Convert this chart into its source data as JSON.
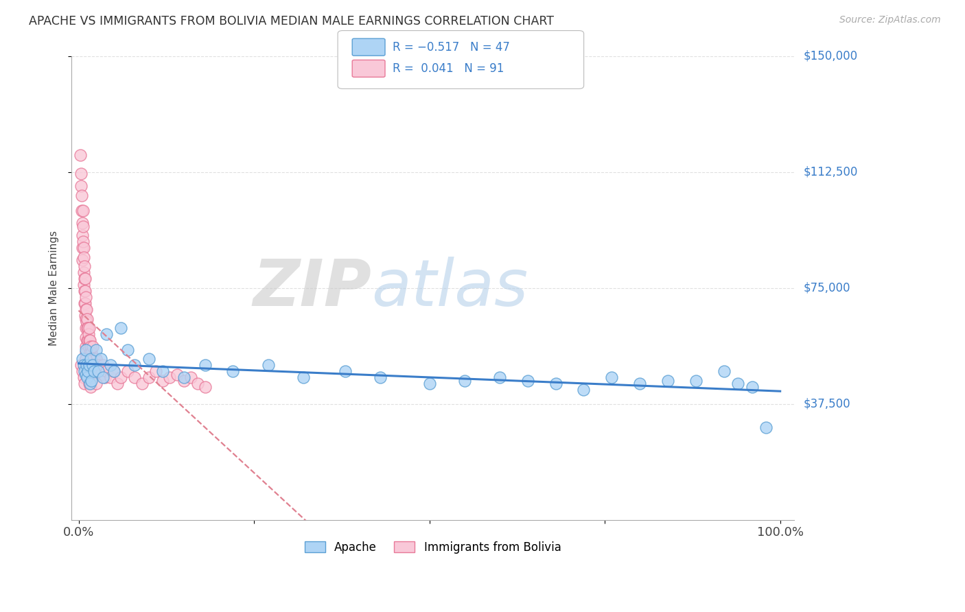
{
  "title": "APACHE VS IMMIGRANTS FROM BOLIVIA MEDIAN MALE EARNINGS CORRELATION CHART",
  "source": "Source: ZipAtlas.com",
  "ylabel": "Median Male Earnings",
  "xlim": [
    -0.01,
    1.02
  ],
  "ylim": [
    0,
    150000
  ],
  "xticks": [
    0.0,
    0.25,
    0.5,
    0.75,
    1.0
  ],
  "xticklabels": [
    "0.0%",
    "",
    "",
    "",
    "100.0%"
  ],
  "ytick_labels": [
    "$37,500",
    "$75,000",
    "$112,500",
    "$150,000"
  ],
  "ytick_values": [
    37500,
    75000,
    112500,
    150000
  ],
  "background_color": "#ffffff",
  "series1_color": "#7ab8e8",
  "series1_fill": "#aed4f5",
  "series1_edge": "#5a9fd4",
  "series2_color": "#f4a0b8",
  "series2_fill": "#f9c8d8",
  "series2_edge": "#e87898",
  "trendline1_color": "#3a7dc9",
  "trendline2_color": "#e08090",
  "grid_color": "#e0e0e0",
  "apache_x": [
    0.005,
    0.007,
    0.008,
    0.01,
    0.01,
    0.011,
    0.012,
    0.013,
    0.015,
    0.016,
    0.017,
    0.018,
    0.02,
    0.022,
    0.025,
    0.028,
    0.032,
    0.035,
    0.04,
    0.045,
    0.05,
    0.06,
    0.07,
    0.08,
    0.1,
    0.12,
    0.15,
    0.18,
    0.22,
    0.27,
    0.32,
    0.38,
    0.43,
    0.5,
    0.55,
    0.6,
    0.64,
    0.68,
    0.72,
    0.76,
    0.8,
    0.84,
    0.88,
    0.92,
    0.94,
    0.96,
    0.98
  ],
  "apache_y": [
    52000,
    50000,
    48000,
    47000,
    55000,
    50000,
    46000,
    48000,
    50000,
    44000,
    52000,
    45000,
    50000,
    48000,
    55000,
    48000,
    52000,
    46000,
    60000,
    50000,
    48000,
    62000,
    55000,
    50000,
    52000,
    48000,
    46000,
    50000,
    48000,
    50000,
    46000,
    48000,
    46000,
    44000,
    45000,
    46000,
    45000,
    44000,
    42000,
    46000,
    44000,
    45000,
    45000,
    48000,
    44000,
    43000,
    30000
  ],
  "bolivia_x": [
    0.002,
    0.003,
    0.003,
    0.004,
    0.004,
    0.005,
    0.005,
    0.005,
    0.005,
    0.006,
    0.006,
    0.006,
    0.007,
    0.007,
    0.007,
    0.007,
    0.008,
    0.008,
    0.008,
    0.008,
    0.009,
    0.009,
    0.009,
    0.009,
    0.01,
    0.01,
    0.01,
    0.01,
    0.01,
    0.01,
    0.01,
    0.01,
    0.011,
    0.011,
    0.012,
    0.012,
    0.012,
    0.013,
    0.013,
    0.014,
    0.014,
    0.015,
    0.015,
    0.016,
    0.016,
    0.017,
    0.017,
    0.018,
    0.018,
    0.019,
    0.02,
    0.02,
    0.021,
    0.022,
    0.023,
    0.024,
    0.025,
    0.026,
    0.028,
    0.03,
    0.032,
    0.035,
    0.038,
    0.04,
    0.045,
    0.05,
    0.055,
    0.06,
    0.07,
    0.08,
    0.09,
    0.1,
    0.11,
    0.12,
    0.13,
    0.14,
    0.15,
    0.16,
    0.17,
    0.18,
    0.003,
    0.005,
    0.007,
    0.008,
    0.01,
    0.011,
    0.013,
    0.015,
    0.017,
    0.02,
    0.025
  ],
  "bolivia_y": [
    118000,
    112000,
    108000,
    105000,
    100000,
    96000,
    92000,
    88000,
    84000,
    100000,
    95000,
    90000,
    88000,
    85000,
    80000,
    76000,
    82000,
    78000,
    74000,
    70000,
    78000,
    74000,
    70000,
    66000,
    72000,
    68000,
    65000,
    62000,
    59000,
    56000,
    54000,
    52000,
    68000,
    64000,
    65000,
    62000,
    58000,
    62000,
    58000,
    60000,
    56000,
    62000,
    58000,
    58000,
    54000,
    56000,
    52000,
    54000,
    50000,
    52000,
    56000,
    52000,
    50000,
    52000,
    49000,
    50000,
    52000,
    49000,
    50000,
    48000,
    47000,
    50000,
    46000,
    48000,
    46000,
    48000,
    44000,
    46000,
    48000,
    46000,
    44000,
    46000,
    48000,
    45000,
    46000,
    47000,
    45000,
    46000,
    44000,
    43000,
    50000,
    48000,
    46000,
    44000,
    52000,
    50000,
    47000,
    44000,
    43000,
    46000,
    44000
  ]
}
